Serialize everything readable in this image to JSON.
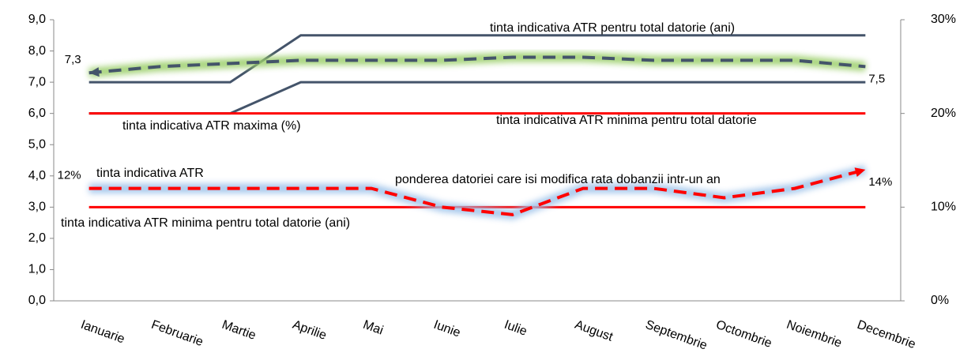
{
  "chart_data": {
    "type": "line",
    "categories": [
      "Ianuarie",
      "Februarie",
      "Martie",
      "Aprilie",
      "Mai",
      "Iunie",
      "Iulie",
      "August",
      "Septembrie",
      "Octombrie",
      "Noiembrie",
      "Decembrie"
    ],
    "ylim": [
      0,
      9
    ],
    "yticks": [
      {
        "value": 0,
        "label": "0,0"
      },
      {
        "value": 1,
        "label": "1,0"
      },
      {
        "value": 2,
        "label": "2,0"
      },
      {
        "value": 3,
        "label": "3,0"
      },
      {
        "value": 4,
        "label": "4,0"
      },
      {
        "value": 5,
        "label": "5,0"
      },
      {
        "value": 6,
        "label": "6,0"
      },
      {
        "value": 7,
        "label": "7,0"
      },
      {
        "value": 8,
        "label": "8,0"
      },
      {
        "value": 9,
        "label": "9,0"
      }
    ],
    "y2lim": [
      0,
      30
    ],
    "y2ticks": [
      {
        "value": 0,
        "label": "0%"
      },
      {
        "value": 10,
        "label": "10%"
      },
      {
        "value": 20,
        "label": "20%"
      },
      {
        "value": 30,
        "label": "30%"
      }
    ],
    "series": [
      {
        "name": "tinta indicativa ATR pentru total datorie (ani)",
        "color": "#44546a",
        "values": [
          7,
          7,
          7,
          8.5,
          8.5,
          8.5,
          8.5,
          8.5,
          8.5,
          8.5,
          8.5,
          8.5
        ]
      },
      {
        "name": "tinta indicativa ATR minima pentru total datorie",
        "color": "#44546a",
        "values": [
          6,
          6,
          6,
          7,
          7,
          7,
          7,
          7,
          7,
          7,
          7,
          7
        ]
      },
      {
        "name": "tinta indicativa ATR maxima (%)",
        "color": "#ff0000",
        "axis": "y2",
        "values": [
          20,
          20,
          20,
          20,
          20,
          20,
          20,
          20,
          20,
          20,
          20,
          20
        ]
      },
      {
        "name": "tinta indicativa ATR",
        "color": "#ff0000",
        "axis": "y2",
        "values": [
          10,
          10,
          10,
          10,
          10,
          10,
          10,
          10,
          10,
          10,
          10,
          10
        ]
      },
      {
        "color": "#44546a",
        "glow": "#9bcf6a",
        "dashed": true,
        "values": [
          7.3,
          7.5,
          7.6,
          7.7,
          7.7,
          7.7,
          7.8,
          7.8,
          7.7,
          7.7,
          7.7,
          7.5
        ],
        "value_labels": [
          "7,3",
          null,
          null,
          null,
          null,
          null,
          null,
          null,
          null,
          null,
          null,
          "7,5"
        ]
      },
      {
        "name": "ponderea datoriei care isi modifica rata dobanzii intr-un an",
        "color": "#ff0000",
        "glow": "#9fc3ea",
        "dashed": true,
        "axis": "y2",
        "values": [
          12,
          12,
          12,
          12,
          12,
          10,
          9.2,
          12,
          12,
          11,
          12,
          14
        ],
        "value_labels": [
          "12%",
          null,
          null,
          null,
          null,
          null,
          null,
          null,
          null,
          null,
          null,
          "14%"
        ]
      }
    ],
    "annotations": [
      {
        "text": "tinta indicativa ATR minima pentru total datorie (ani)",
        "color": "#44546a"
      }
    ]
  }
}
